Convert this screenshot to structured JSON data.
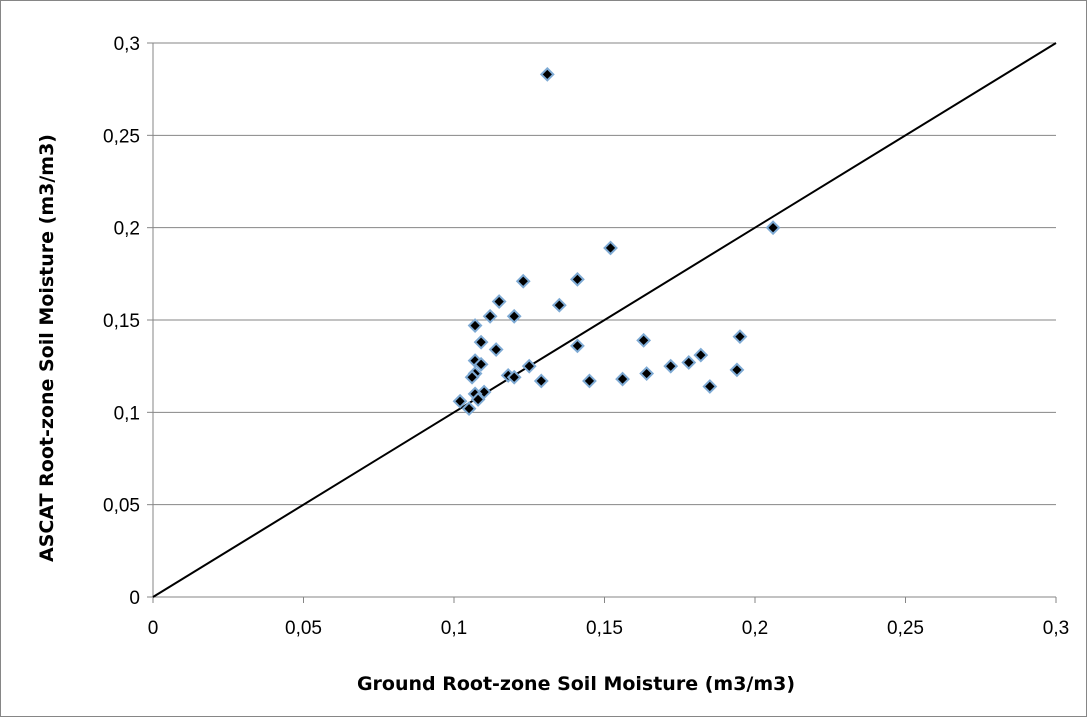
{
  "chart_data": {
    "type": "scatter",
    "xlabel": "Ground  Root-zone Soil Moisture (m3/m3)",
    "ylabel": "ASCAT Root-zone Soil Moisture (m3/m3)",
    "xlim": [
      0,
      0.3
    ],
    "ylim": [
      0,
      0.3
    ],
    "x_ticks": [
      "0",
      "0,05",
      "0,1",
      "0,15",
      "0,2",
      "0,25",
      "0,3"
    ],
    "y_ticks": [
      "0",
      "0,05",
      "0,1",
      "0,15",
      "0,2",
      "0,25",
      "0,3"
    ],
    "grid": "horizontal",
    "reference_line": {
      "x": [
        0,
        0.3
      ],
      "y": [
        0,
        0.3
      ]
    },
    "marker": {
      "shape": "diamond",
      "fill": "#000000",
      "edge": "#7eaad4"
    },
    "line_color": "#000000",
    "grid_color": "#868686",
    "series": [
      {
        "x": [
          0.131,
          0.206,
          0.152,
          0.123,
          0.141,
          0.115,
          0.135,
          0.112,
          0.12,
          0.107,
          0.109,
          0.141,
          0.114,
          0.163,
          0.195,
          0.107,
          0.109,
          0.125,
          0.118,
          0.107,
          0.106,
          0.12,
          0.129,
          0.145,
          0.156,
          0.164,
          0.172,
          0.178,
          0.182,
          0.194,
          0.185,
          0.11,
          0.107,
          0.108,
          0.102,
          0.105
        ],
        "y": [
          0.283,
          0.2,
          0.189,
          0.171,
          0.172,
          0.16,
          0.158,
          0.152,
          0.152,
          0.147,
          0.138,
          0.136,
          0.134,
          0.139,
          0.141,
          0.128,
          0.126,
          0.125,
          0.12,
          0.121,
          0.119,
          0.119,
          0.117,
          0.117,
          0.118,
          0.121,
          0.125,
          0.127,
          0.131,
          0.123,
          0.114,
          0.111,
          0.11,
          0.107,
          0.106,
          0.102
        ]
      }
    ]
  }
}
